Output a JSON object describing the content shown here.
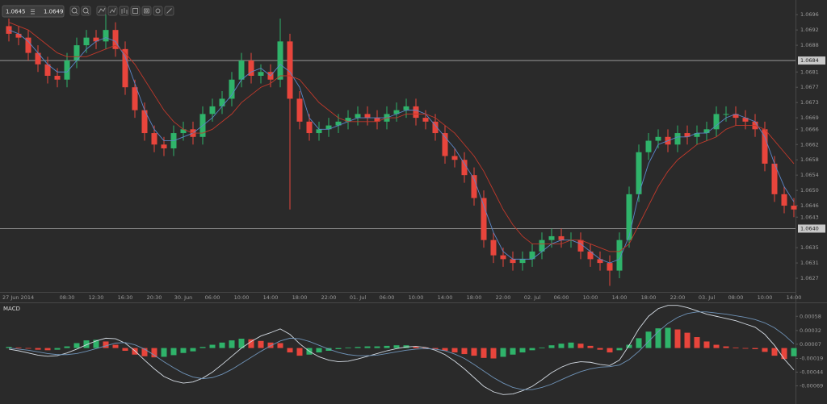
{
  "toolbar": {
    "bid": "1.0645",
    "ask": "1.0649"
  },
  "chart_data": {
    "type": "candlestick",
    "categories": [
      "27 Jun 2014",
      null,
      null,
      null,
      null,
      null,
      "08:30",
      null,
      null,
      "12:30",
      null,
      null,
      "16:30",
      null,
      null,
      "20:30",
      null,
      null,
      "30. Jun",
      null,
      null,
      "06:00",
      null,
      null,
      "10:00",
      null,
      null,
      "14:00",
      null,
      null,
      "18:00",
      null,
      null,
      "22:00",
      null,
      null,
      "01. Jul",
      null,
      null,
      "06:00",
      null,
      null,
      "10:00",
      null,
      null,
      "14:00",
      null,
      null,
      "18:00",
      null,
      null,
      "22:00",
      null,
      null,
      "02. Jul",
      null,
      null,
      "06:00",
      null,
      null,
      "10:00",
      null,
      null,
      "14:00",
      null,
      null,
      "18:00",
      null,
      null,
      "22:00",
      null,
      null,
      "03. Jul",
      null,
      null,
      "08:00",
      null,
      null,
      "10:00",
      null,
      null,
      "14:00"
    ],
    "open": [
      1.0693,
      1.0691,
      1.069,
      1.0686,
      1.0683,
      1.068,
      1.0679,
      1.0684,
      1.0688,
      1.069,
      1.0689,
      1.0692,
      1.0687,
      1.0677,
      1.0671,
      1.0665,
      1.0662,
      1.0661,
      1.0665,
      1.0666,
      1.0664,
      1.067,
      1.0672,
      1.0674,
      1.0679,
      1.0684,
      1.068,
      1.0681,
      1.0679,
      1.0689,
      1.0674,
      1.0668,
      1.0665,
      1.0666,
      1.0667,
      1.0668,
      1.0669,
      1.067,
      1.0669,
      1.0668,
      1.067,
      1.0671,
      1.0672,
      1.0669,
      1.0668,
      1.0665,
      1.0659,
      1.0658,
      1.0654,
      1.0648,
      1.0637,
      1.0633,
      1.0632,
      1.0631,
      1.0632,
      1.0634,
      1.0637,
      1.0638,
      1.0637,
      1.0637,
      1.0634,
      1.0632,
      1.0631,
      1.0629,
      1.0637,
      1.0649,
      1.066,
      1.0663,
      1.0664,
      1.0662,
      1.0665,
      1.0664,
      1.0665,
      1.0666,
      1.067,
      1.067,
      1.0669,
      1.0668,
      1.0666,
      1.0657,
      1.0649,
      1.0646
    ],
    "high": [
      1.0695,
      1.0693,
      1.0692,
      1.0688,
      1.0685,
      1.0682,
      1.0686,
      1.069,
      1.0692,
      1.0692,
      1.0696,
      1.0694,
      1.0689,
      1.0679,
      1.0673,
      1.0667,
      1.0664,
      1.0667,
      1.0668,
      1.0668,
      1.0672,
      1.0674,
      1.0676,
      1.0681,
      1.0686,
      1.0686,
      1.0683,
      1.0683,
      1.0695,
      1.0691,
      1.0676,
      1.067,
      1.0668,
      1.0669,
      1.067,
      1.0671,
      1.0672,
      1.0672,
      1.0671,
      1.0672,
      1.0673,
      1.0674,
      1.0674,
      1.0671,
      1.067,
      1.0667,
      1.0661,
      1.066,
      1.0656,
      1.065,
      1.0639,
      1.0635,
      1.0634,
      1.0634,
      1.0636,
      1.0639,
      1.064,
      1.064,
      1.0639,
      1.0639,
      1.0636,
      1.0634,
      1.0633,
      1.0639,
      1.0651,
      1.0662,
      1.0665,
      1.0666,
      1.0666,
      1.0667,
      1.0667,
      1.0667,
      1.0668,
      1.0672,
      1.0672,
      1.0672,
      1.0671,
      1.067,
      1.0668,
      1.0659,
      1.0651,
      1.0648
    ],
    "low": [
      1.0689,
      1.0688,
      1.0684,
      1.0681,
      1.0678,
      1.0677,
      1.0677,
      1.0682,
      1.0686,
      1.0687,
      1.0687,
      1.0685,
      1.0675,
      1.0669,
      1.0663,
      1.066,
      1.0659,
      1.0659,
      1.0663,
      1.0662,
      1.0662,
      1.0668,
      1.067,
      1.0672,
      1.0677,
      1.0678,
      1.0678,
      1.0677,
      1.0677,
      1.0645,
      1.0666,
      1.0663,
      1.0663,
      1.0664,
      1.0665,
      1.0666,
      1.0667,
      1.0667,
      1.0666,
      1.0666,
      1.0668,
      1.0669,
      1.0667,
      1.0666,
      1.0663,
      1.0657,
      1.0656,
      1.0652,
      1.0646,
      1.0635,
      1.0631,
      1.063,
      1.0629,
      1.0629,
      1.063,
      1.0632,
      1.0635,
      1.0635,
      1.0635,
      1.0632,
      1.063,
      1.0629,
      1.0625,
      1.0627,
      1.0635,
      1.0647,
      1.0658,
      1.0661,
      1.066,
      1.066,
      1.0662,
      1.0662,
      1.0663,
      1.0664,
      1.0668,
      1.0667,
      1.0666,
      1.0664,
      1.0655,
      1.0647,
      1.0644,
      1.0643
    ],
    "close": [
      1.0691,
      1.069,
      1.0686,
      1.0683,
      1.068,
      1.0679,
      1.0684,
      1.0688,
      1.069,
      1.0689,
      1.0692,
      1.0687,
      1.0677,
      1.0671,
      1.0665,
      1.0662,
      1.0661,
      1.0665,
      1.0666,
      1.0664,
      1.067,
      1.0672,
      1.0674,
      1.0679,
      1.0684,
      1.068,
      1.0681,
      1.0679,
      1.0689,
      1.0674,
      1.0668,
      1.0665,
      1.0666,
      1.0667,
      1.0668,
      1.0669,
      1.067,
      1.0669,
      1.0668,
      1.067,
      1.0671,
      1.0672,
      1.0669,
      1.0668,
      1.0665,
      1.0659,
      1.0658,
      1.0654,
      1.0648,
      1.0637,
      1.0633,
      1.0632,
      1.0631,
      1.0632,
      1.0634,
      1.0637,
      1.0638,
      1.0637,
      1.0637,
      1.0634,
      1.0632,
      1.0631,
      1.0629,
      1.0637,
      1.0649,
      1.066,
      1.0663,
      1.0664,
      1.0662,
      1.0665,
      1.0664,
      1.0665,
      1.0666,
      1.067,
      1.067,
      1.0669,
      1.0668,
      1.0666,
      1.0657,
      1.0649,
      1.0646,
      1.0645
    ],
    "up_color": "#2fb36a",
    "down_color": "#e8453c",
    "moving_averages": [
      {
        "color": "#5a86c8",
        "values": [
          1.0692,
          1.0691,
          1.0689,
          1.0686,
          1.0683,
          1.0681,
          1.0681,
          1.0684,
          1.0687,
          1.0689,
          1.069,
          1.0689,
          1.0685,
          1.0678,
          1.0671,
          1.0666,
          1.0663,
          1.0663,
          1.0664,
          1.0665,
          1.0667,
          1.0669,
          1.0672,
          1.0675,
          1.0679,
          1.0681,
          1.0682,
          1.068,
          1.0683,
          1.0681,
          1.0677,
          1.0669,
          1.0666,
          1.0666,
          1.0667,
          1.0668,
          1.0669,
          1.0669,
          1.0669,
          1.0669,
          1.067,
          1.0671,
          1.0671,
          1.067,
          1.0667,
          1.0664,
          1.0661,
          1.0657,
          1.0653,
          1.0646,
          1.0639,
          1.0634,
          1.0632,
          1.0632,
          1.0632,
          1.0634,
          1.0636,
          1.0637,
          1.0637,
          1.0636,
          1.0634,
          1.0632,
          1.0631,
          1.0632,
          1.0638,
          1.0649,
          1.0657,
          1.0662,
          1.0663,
          1.0664,
          1.0664,
          1.0665,
          1.0665,
          1.0667,
          1.0669,
          1.067,
          1.0669,
          1.0668,
          1.0664,
          1.0657,
          1.0651,
          1.0647
        ]
      },
      {
        "color": "#c0392b",
        "values": [
          1.0694,
          1.0693,
          1.0692,
          1.069,
          1.0688,
          1.0686,
          1.0685,
          1.0685,
          1.0685,
          1.0686,
          1.0687,
          1.0688,
          1.0686,
          1.0683,
          1.0679,
          1.0675,
          1.0671,
          1.0668,
          1.0666,
          1.0665,
          1.0665,
          1.0666,
          1.0668,
          1.067,
          1.0673,
          1.0675,
          1.0677,
          1.0678,
          1.068,
          1.068,
          1.0679,
          1.0676,
          1.0673,
          1.0671,
          1.0669,
          1.0668,
          1.0668,
          1.0668,
          1.0668,
          1.0669,
          1.0669,
          1.067,
          1.067,
          1.067,
          1.0669,
          1.0667,
          1.0665,
          1.0662,
          1.0659,
          1.0655,
          1.065,
          1.0645,
          1.0641,
          1.0638,
          1.0636,
          1.0636,
          1.0636,
          1.0636,
          1.0637,
          1.0637,
          1.0636,
          1.0635,
          1.0634,
          1.0634,
          1.0636,
          1.0641,
          1.0646,
          1.0651,
          1.0655,
          1.0658,
          1.066,
          1.0662,
          1.0663,
          1.0664,
          1.0666,
          1.0667,
          1.0667,
          1.0667,
          1.0666,
          1.0663,
          1.066,
          1.0657
        ]
      }
    ],
    "hlines": [
      {
        "value": 1.0684,
        "label": "1.0684"
      },
      {
        "value": 1.064,
        "label": "1.0640"
      }
    ],
    "ylim": [
      1.0623,
      1.0699
    ],
    "yticks": [
      1.0696,
      1.0692,
      1.0688,
      1.0681,
      1.0677,
      1.0673,
      1.0669,
      1.0666,
      1.0662,
      1.0658,
      1.0654,
      {
        "value": 1.065,
        "label": "1.0650"
      },
      1.0646,
      1.0643,
      1.0635,
      1.0631,
      1.0627
    ],
    "grid": false,
    "macd_panel": {
      "title": "MACD",
      "ylim": [
        -0.00089,
        0.00079
      ],
      "yticks": [
        0.00058,
        0.00032,
        7e-05,
        -0.00019,
        -0.00044,
        -0.00069
      ],
      "histogram": [
        2e-05,
        1e-05,
        -1e-05,
        -3e-05,
        -4e-05,
        -3e-05,
        3e-05,
        9e-05,
        0.00014,
        0.00015,
        0.00012,
        6e-05,
        -5e-05,
        -0.00012,
        -0.00015,
        -0.00017,
        -0.00016,
        -0.00013,
        -9e-05,
        -6e-05,
        2e-05,
        6e-05,
        0.0001,
        0.00014,
        0.00017,
        0.00016,
        0.00013,
        0.0001,
        9e-05,
        -8e-05,
        -0.00014,
        -0.00012,
        -8e-05,
        -5e-05,
        -2e-05,
        1e-05,
        2e-05,
        3e-05,
        3e-05,
        4e-05,
        5e-05,
        5e-05,
        3e-05,
        1e-05,
        -2e-05,
        -5e-05,
        -8e-05,
        -0.00011,
        -0.00014,
        -0.00018,
        -0.00019,
        -0.00016,
        -0.00012,
        -8e-05,
        -4e-05,
        1e-05,
        5e-05,
        8e-05,
        0.0001,
        8e-05,
        4e-05,
        -3e-05,
        -8e-05,
        -4e-05,
        6e-05,
        0.00018,
        0.0003,
        0.00036,
        0.00037,
        0.00034,
        0.00028,
        0.0002,
        0.00012,
        6e-05,
        3e-05,
        1e-05,
        -1e-05,
        -2e-05,
        -7e-05,
        -0.00014,
        -0.0002,
        -0.00015
      ],
      "lines": [
        {
          "color": "#d4dbe3",
          "values": [
            -2e-05,
            -5e-05,
            -9e-05,
            -0.00013,
            -0.00015,
            -0.00014,
            -9e-05,
            -2e-05,
            6e-05,
            0.00013,
            0.00018,
            0.00017,
            9e-05,
            -5e-05,
            -0.00022,
            -0.00038,
            -0.00052,
            -0.0006,
            -0.00064,
            -0.00062,
            -0.00055,
            -0.00044,
            -0.0003,
            -0.00015,
            0,
            0.00012,
            0.00022,
            0.00028,
            0.00035,
            0.00025,
            8e-05,
            -6e-05,
            -0.00016,
            -0.00022,
            -0.00025,
            -0.00024,
            -0.0002,
            -0.00015,
            -0.0001,
            -5e-05,
            -1e-05,
            2e-05,
            3e-05,
            1e-05,
            -4e-05,
            -0.00012,
            -0.00024,
            -0.00038,
            -0.00054,
            -0.0007,
            -0.0008,
            -0.00085,
            -0.00084,
            -0.00078,
            -0.0007,
            -0.00058,
            -0.00045,
            -0.00035,
            -0.00028,
            -0.00025,
            -0.00026,
            -0.0003,
            -0.00032,
            -0.00022,
            5e-05,
            0.00035,
            0.00058,
            0.00072,
            0.00078,
            0.00078,
            0.00074,
            0.00068,
            0.00062,
            0.00058,
            0.00054,
            0.0005,
            0.00044,
            0.00038,
            0.00025,
            5e-05,
            -0.0002,
            -0.0004
          ]
        },
        {
          "color": "#6f93b8",
          "values": [
            0,
            -2e-05,
            -4e-05,
            -7e-05,
            -0.0001,
            -0.00012,
            -0.00012,
            -0.0001,
            -6e-05,
            -1e-05,
            4e-05,
            9e-05,
            0.0001,
            6e-05,
            -2e-05,
            -0.00013,
            -0.00025,
            -0.00036,
            -0.00046,
            -0.00053,
            -0.00056,
            -0.00054,
            -0.00048,
            -0.00039,
            -0.00028,
            -0.00017,
            -6e-05,
            4e-05,
            0.00013,
            0.00018,
            0.00017,
            0.00012,
            5e-05,
            -2e-05,
            -8e-05,
            -0.00012,
            -0.00014,
            -0.00014,
            -0.00013,
            -0.0001,
            -7e-05,
            -4e-05,
            -2e-05,
            -1e-05,
            -2e-05,
            -5e-05,
            -0.00011,
            -0.00019,
            -0.0003,
            -0.00042,
            -0.00054,
            -0.00064,
            -0.00072,
            -0.00076,
            -0.00076,
            -0.00072,
            -0.00066,
            -0.00058,
            -0.0005,
            -0.00043,
            -0.00038,
            -0.00035,
            -0.00034,
            -0.00031,
            -0.00021,
            -6e-05,
            0.00012,
            0.0003,
            0.00045,
            0.00056,
            0.00063,
            0.00066,
            0.00066,
            0.00064,
            0.00062,
            0.00059,
            0.00056,
            0.00052,
            0.00046,
            0.00037,
            0.00024,
            8e-05
          ]
        }
      ]
    }
  }
}
